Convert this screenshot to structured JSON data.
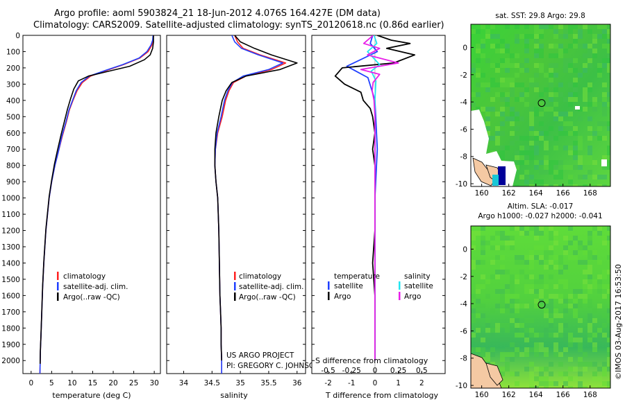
{
  "header": {
    "line1": "Argo profile: aoml 5903824_21 18-Jun-2012 4.076S 164.427E (DM data)",
    "line2": "Climatology: CARS2009. Satellite-adjusted climatology: synTS_20120618.nc (0.86d earlier)"
  },
  "side_label": "©IMOS 03-Aug-2017 16:53:50",
  "colors": {
    "climatology": "#ff2020",
    "satellite": "#1f3fff",
    "argo": "#000000",
    "t_satellite": "#1f3fff",
    "t_argo": "#000000",
    "s_satellite": "#22e5f0",
    "s_argo": "#e81ee8"
  },
  "legend_profile": {
    "clim": "climatology",
    "sat": "satellite-adj. clim.",
    "argo": "Argo(..raw -QC)"
  },
  "legend_diff": {
    "temp_title": "temperature",
    "sal_title": "salinity",
    "satellite": "satellite",
    "argo": "Argo"
  },
  "credit": {
    "line1": "US ARGO PROJECT",
    "line2": "PI: GREGORY C. JOHNSON"
  },
  "map_sst": {
    "title": "sat. SST: 29.8 Argo: 29.8"
  },
  "map_sla": {
    "title1": "Altim. SLA: -0.017",
    "title2": "Argo h1000: -0.027 h2000: -0.041"
  },
  "chart_data": [
    {
      "type": "line",
      "name": "temperature profile",
      "xlabel": "temperature (deg C)",
      "ylabel": "",
      "xlim": [
        -2,
        31.5
      ],
      "ylim": [
        2080,
        0
      ],
      "xticks": [
        0,
        5,
        10,
        15,
        20,
        25,
        30
      ],
      "yticks": [
        0,
        100,
        200,
        300,
        400,
        500,
        600,
        700,
        800,
        900,
        1000,
        1100,
        1200,
        1300,
        1400,
        1500,
        1600,
        1700,
        1800,
        1900,
        2000
      ],
      "series": [
        {
          "name": "climatology",
          "x": [
            29.8,
            29.7,
            29.4,
            28.5,
            26.5,
            22.5,
            18.5,
            14.5,
            12.5,
            11.2,
            10.2,
            9.3,
            8.6,
            7.6,
            6.6,
            5.8,
            5.0,
            4.4,
            3.6,
            3.1,
            2.8,
            2.6,
            2.4,
            2.25,
            2.2,
            2.15
          ],
          "y": [
            0,
            30,
            60,
            100,
            140,
            180,
            215,
            250,
            290,
            340,
            400,
            460,
            530,
            620,
            720,
            800,
            900,
            1000,
            1200,
            1400,
            1550,
            1700,
            1850,
            1950,
            2020,
            2080
          ]
        },
        {
          "name": "satellite-adj. clim.",
          "x": [
            29.7,
            29.6,
            29.2,
            28.2,
            26.3,
            22.3,
            18.2,
            14.2,
            12.2,
            11.0,
            10.1,
            9.2,
            8.5,
            7.5,
            6.6,
            5.8,
            5.0,
            4.4,
            3.6,
            3.1,
            2.8,
            2.6,
            2.4,
            2.25,
            2.2,
            2.15
          ],
          "y": [
            0,
            30,
            60,
            100,
            140,
            180,
            215,
            250,
            290,
            340,
            400,
            460,
            530,
            620,
            720,
            800,
            900,
            1000,
            1200,
            1400,
            1550,
            1700,
            1850,
            1950,
            2020,
            2080
          ]
        },
        {
          "name": "Argo(..raw -QC)",
          "x": [
            29.8,
            29.8,
            29.6,
            29.0,
            27.6,
            24.0,
            19.0,
            14.0,
            11.5,
            10.4,
            9.6,
            8.9,
            8.2,
            7.3,
            6.4,
            5.7,
            5.0,
            4.4,
            3.6,
            3.1,
            2.8,
            2.6,
            2.4,
            2.25,
            2.2
          ],
          "y": [
            0,
            40,
            80,
            120,
            150,
            190,
            220,
            250,
            280,
            330,
            390,
            450,
            520,
            610,
            710,
            790,
            890,
            990,
            1190,
            1390,
            1540,
            1690,
            1840,
            1940,
            2020
          ]
        }
      ]
    },
    {
      "type": "line",
      "name": "salinity profile",
      "xlabel": "salinity",
      "ylabel": "",
      "xlim": [
        33.7,
        36.15
      ],
      "ylim": [
        2080,
        0
      ],
      "xticks": [
        34,
        34.5,
        35,
        35.5,
        36
      ],
      "series": [
        {
          "name": "climatology",
          "x": [
            34.9,
            34.95,
            35.05,
            35.35,
            35.8,
            35.55,
            35.1,
            34.88,
            34.8,
            34.74,
            34.68,
            34.6,
            34.56,
            34.55,
            34.57,
            34.6,
            34.62,
            34.63,
            34.64,
            34.65,
            34.66,
            34.66,
            34.67,
            34.67
          ],
          "y": [
            0,
            40,
            80,
            120,
            170,
            210,
            250,
            290,
            340,
            400,
            500,
            600,
            700,
            800,
            900,
            1000,
            1200,
            1400,
            1600,
            1700,
            1800,
            1900,
            2000,
            2080
          ]
        },
        {
          "name": "satellite-adj. clim.",
          "x": [
            34.85,
            34.9,
            35.02,
            35.32,
            35.75,
            35.5,
            35.05,
            34.86,
            34.78,
            34.72,
            34.66,
            34.59,
            34.56,
            34.55,
            34.57,
            34.6,
            34.62,
            34.63,
            34.64,
            34.65,
            34.66,
            34.66,
            34.67,
            34.67
          ],
          "y": [
            0,
            40,
            80,
            120,
            170,
            210,
            250,
            290,
            340,
            400,
            500,
            600,
            700,
            800,
            900,
            1000,
            1200,
            1400,
            1600,
            1700,
            1800,
            1900,
            2000,
            2080
          ]
        },
        {
          "name": "Argo(..raw -QC)",
          "x": [
            34.9,
            35.0,
            35.25,
            35.55,
            36.0,
            35.7,
            35.1,
            34.85,
            34.75,
            34.68,
            34.62,
            34.57,
            34.55,
            34.55,
            34.57,
            34.6,
            34.62,
            34.63,
            34.64,
            34.65,
            34.66,
            34.66,
            34.67
          ],
          "y": [
            0,
            40,
            80,
            120,
            170,
            210,
            250,
            290,
            340,
            400,
            500,
            600,
            700,
            800,
            900,
            1000,
            1200,
            1400,
            1600,
            1700,
            1800,
            1900,
            2000
          ]
        }
      ]
    },
    {
      "type": "line",
      "name": "difference from climatology",
      "xlabel": "T difference from climatology",
      "xlabel_top": "S difference from climatology",
      "ylabel": "",
      "xlim": [
        -2.7,
        3.0
      ],
      "ylim": [
        2080,
        0
      ],
      "xticks": [
        -2,
        -1,
        0,
        1,
        2
      ],
      "xticks_top": [
        -0.5,
        -0.25,
        0,
        0.25,
        0.5
      ],
      "x_top_to_bottom_factor": 4,
      "series": [
        {
          "name": "temperature satellite",
          "axis": "T",
          "x": [
            -0.1,
            -0.2,
            0.1,
            -1.2,
            -0.3,
            0.0,
            0.1,
            0.0,
            0.0,
            0.0
          ],
          "y": [
            0,
            50,
            100,
            190,
            260,
            400,
            700,
            1000,
            1500,
            2000
          ]
        },
        {
          "name": "temperature Argo",
          "axis": "T",
          "x": [
            0.1,
            0.7,
            1.5,
            0.5,
            1.7,
            0.8,
            -1.4,
            -1.7,
            -1.3,
            -0.6,
            -0.5,
            -0.2,
            -0.1,
            0.0,
            -0.1,
            0.0,
            0.0,
            0.0,
            -0.1,
            0.0,
            0.0
          ],
          "y": [
            0,
            30,
            50,
            80,
            120,
            170,
            200,
            250,
            300,
            350,
            400,
            450,
            500,
            600,
            700,
            800,
            1000,
            1200,
            1400,
            1600,
            2000
          ]
        },
        {
          "name": "salinity satellite",
          "axis": "S",
          "x": [
            -0.01,
            0.02,
            -0.08,
            0.05,
            -0.04,
            0.01,
            0.0,
            0.0,
            0.0,
            0.0
          ],
          "y": [
            0,
            50,
            100,
            180,
            220,
            280,
            400,
            800,
            1400,
            2000
          ]
        },
        {
          "name": "salinity Argo",
          "axis": "S",
          "x": [
            -0.02,
            -0.12,
            0.05,
            -0.08,
            0.25,
            -0.15,
            0.05,
            -0.02,
            -0.03,
            -0.01,
            0.0,
            0.0,
            0.0,
            0.0
          ],
          "y": [
            0,
            50,
            80,
            120,
            170,
            210,
            240,
            290,
            340,
            400,
            500,
            800,
            1400,
            2000
          ]
        }
      ]
    },
    {
      "type": "heatmap",
      "name": "sat. SST map",
      "xlim": [
        159.2,
        169.5
      ],
      "ylim": [
        -10.2,
        1.7
      ],
      "xticks": [
        160,
        162,
        164,
        166,
        168
      ],
      "yticks": [
        0,
        -2,
        -4,
        -6,
        -8,
        -10
      ],
      "marker": {
        "lon": 164.427,
        "lat": -4.076
      }
    },
    {
      "type": "heatmap",
      "name": "altimetry SLA map",
      "xlim": [
        159.2,
        169.5
      ],
      "ylim": [
        -10.2,
        1.7
      ],
      "xticks": [
        160,
        162,
        164,
        166,
        168
      ],
      "yticks": [
        0,
        -2,
        -4,
        -6,
        -8,
        -10
      ],
      "marker": {
        "lon": 164.427,
        "lat": -4.076
      }
    }
  ]
}
